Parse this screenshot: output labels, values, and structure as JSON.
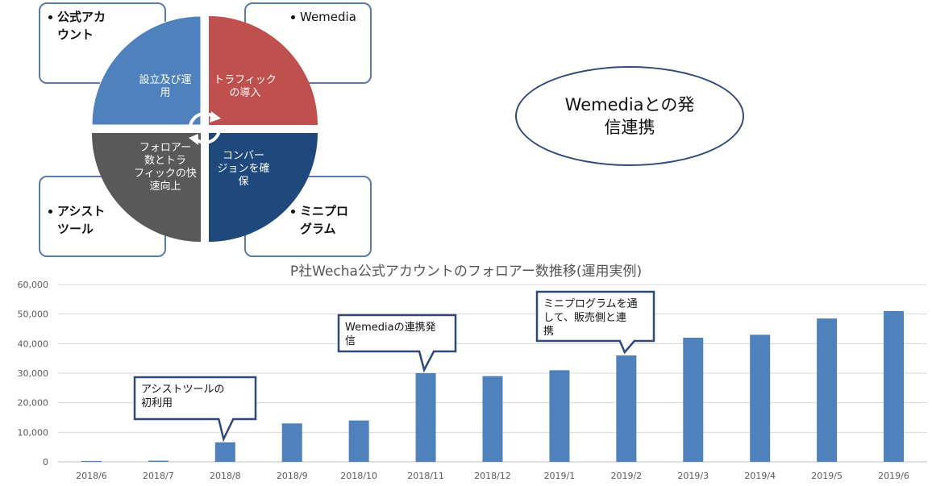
{
  "diagram": {
    "boxes": [
      {
        "id": "tl",
        "lines": [
          "公式アカ",
          "ウント"
        ]
      },
      {
        "id": "tr",
        "lines": [
          "Wemedia"
        ]
      },
      {
        "id": "bl",
        "lines": [
          "アシスト",
          "ツール"
        ]
      },
      {
        "id": "br",
        "lines": [
          "ミニプロ",
          "グラム"
        ]
      }
    ],
    "quadrants": [
      {
        "id": "q1",
        "lines": [
          "設立及び運",
          "用"
        ],
        "color": "#4f81bd"
      },
      {
        "id": "q2",
        "lines": [
          "トラフィック",
          "の導入"
        ],
        "color": "#c0504d"
      },
      {
        "id": "q3",
        "lines": [
          "フォロアー",
          "数とトラ",
          "フィックの快",
          "速向上"
        ],
        "color": "#595959"
      },
      {
        "id": "q4",
        "lines": [
          "コンバー",
          "ジョンを確",
          "保"
        ],
        "color": "#1f497d"
      }
    ],
    "ellipse_lines": [
      "Wemediaとの発",
      "信連携"
    ]
  },
  "chart_data": {
    "type": "bar",
    "title": "P社Wecha公式アカウントのフォロアー数推移(運用実例)",
    "categories": [
      "2018/6",
      "2018/7",
      "2018/8",
      "2018/9",
      "2018/10",
      "2018/11",
      "2018/12",
      "2019/1",
      "2019/2",
      "2019/3",
      "2019/4",
      "2019/5",
      "2019/6"
    ],
    "values": [
      300,
      400,
      6600,
      13000,
      14000,
      30000,
      29000,
      31000,
      36000,
      42000,
      43000,
      48500,
      51000
    ],
    "ylim": [
      0,
      60000
    ],
    "yticks": [
      "0",
      "10,000",
      "20,000",
      "30,000",
      "40,000",
      "50,000",
      "60,000"
    ],
    "ytick_values": [
      0,
      10000,
      20000,
      30000,
      40000,
      50000,
      60000
    ],
    "bar_color": "#4f81bd",
    "grid": true,
    "annotations": [
      {
        "category": "2018/8",
        "lines": [
          "アシストツールの",
          "初利用"
        ]
      },
      {
        "category": "2018/11",
        "lines": [
          "Wemediaの連携発",
          "信"
        ]
      },
      {
        "category": "2019/2",
        "lines": [
          "ミニプログラムを通",
          "して、販売側と連",
          "携"
        ]
      }
    ]
  }
}
